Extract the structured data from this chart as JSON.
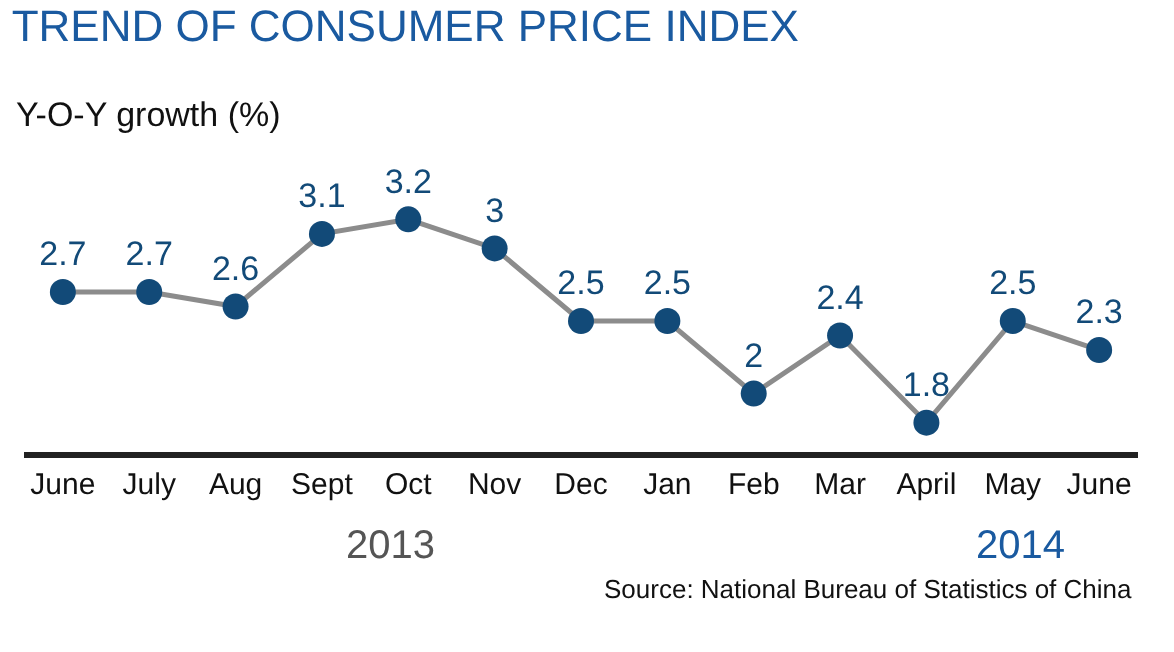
{
  "chart_data": {
    "type": "line",
    "title": "TREND OF CONSUMER PRICE INDEX",
    "subtitle": "Y-O-Y growth (%)",
    "categories": [
      "June",
      "July",
      "Aug",
      "Sept",
      "Oct",
      "Nov",
      "Dec",
      "Jan",
      "Feb",
      "Mar",
      "April",
      "May",
      "June"
    ],
    "series": [
      {
        "color": "#124a78",
        "values": [
          2.7,
          2.7,
          2.6,
          3.1,
          3.2,
          3,
          2.5,
          2.5,
          2,
          2.4,
          1.8,
          2.5,
          2.3
        ]
      }
    ],
    "tick_labels": "x",
    "data_labels": true,
    "marker": "circle",
    "line_style": "solid",
    "legend": false,
    "annotations": [
      "2013",
      "2014",
      "Source: National Bureau of Statistics of China"
    ]
  }
}
